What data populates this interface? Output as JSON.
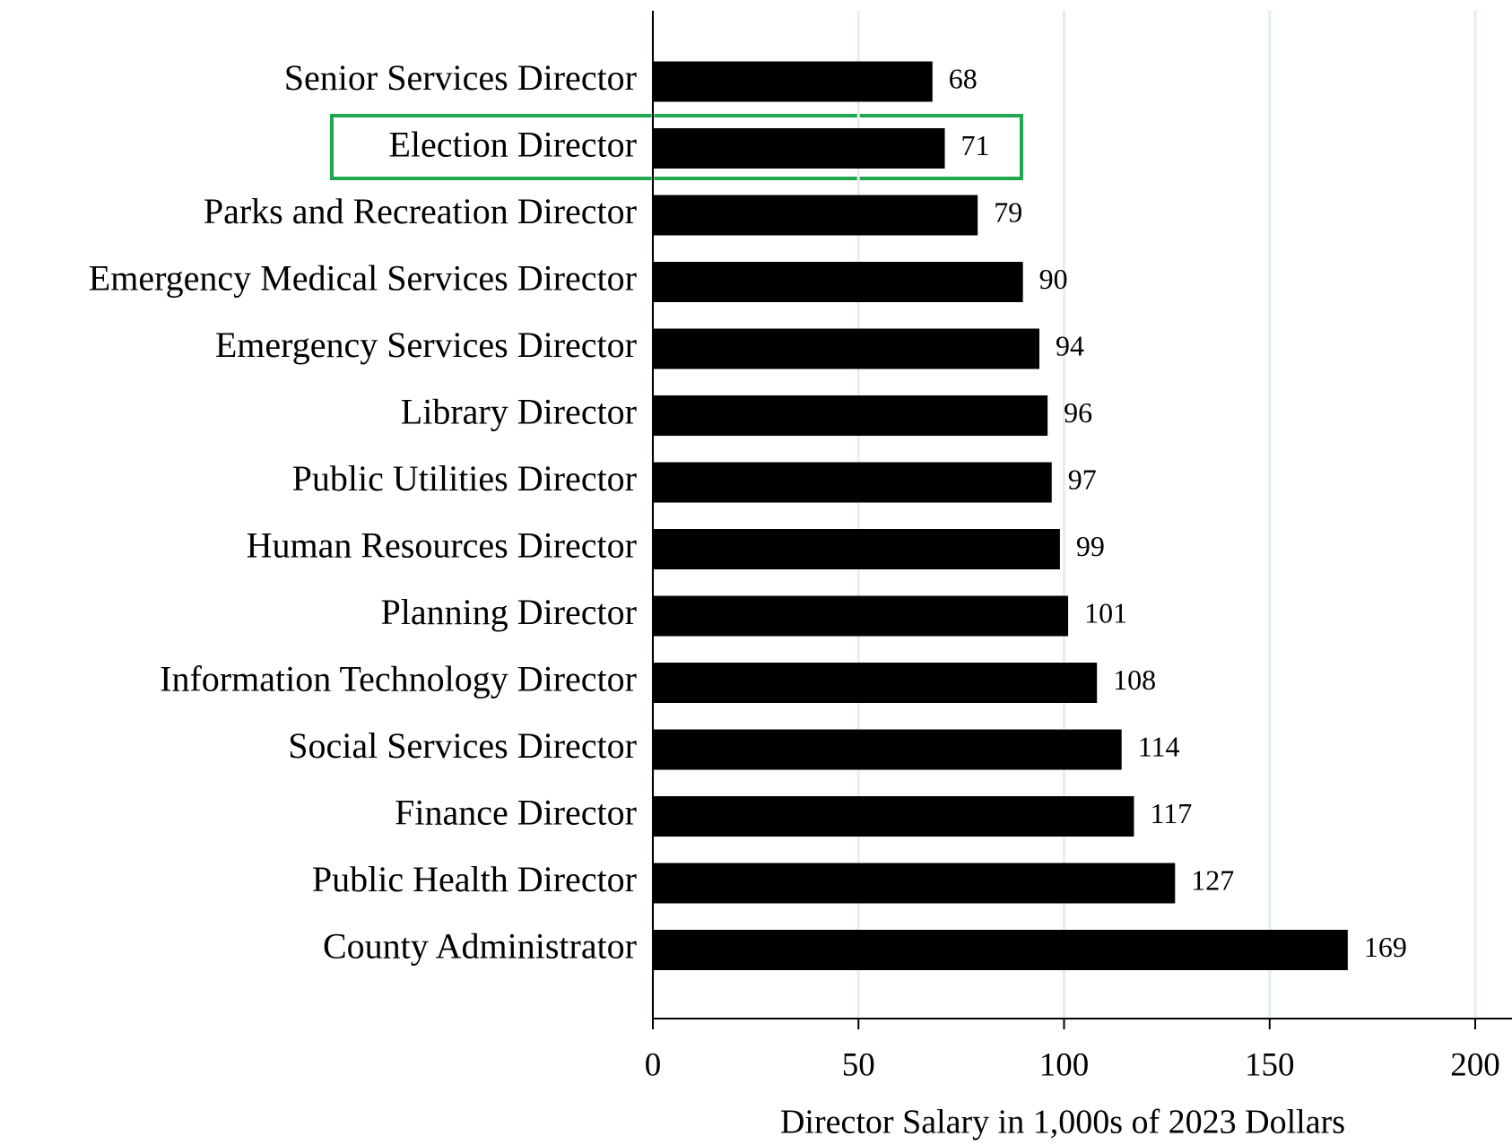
{
  "chart_data": {
    "type": "barh",
    "xlabel": "Director Salary in 1,000s of 2023 Dollars",
    "categories": [
      "Senior Services Director",
      "Election Director",
      "Parks and Recreation Director",
      "Emergency Medical Services Director",
      "Emergency Services Director",
      "Library Director",
      "Public Utilities Director",
      "Human Resources Director",
      "Planning Director",
      "Information Technology Director",
      "Social Services Director",
      "Finance Director",
      "Public Health Director",
      "County Administrator"
    ],
    "values": [
      68,
      71,
      79,
      90,
      94,
      96,
      97,
      99,
      101,
      108,
      114,
      117,
      127,
      169
    ],
    "color": "#000000",
    "xlim": [
      0,
      200
    ],
    "xticks": [
      0,
      50,
      100,
      150,
      200
    ],
    "grid": true,
    "grid_color": "#e3efef"
  }
}
